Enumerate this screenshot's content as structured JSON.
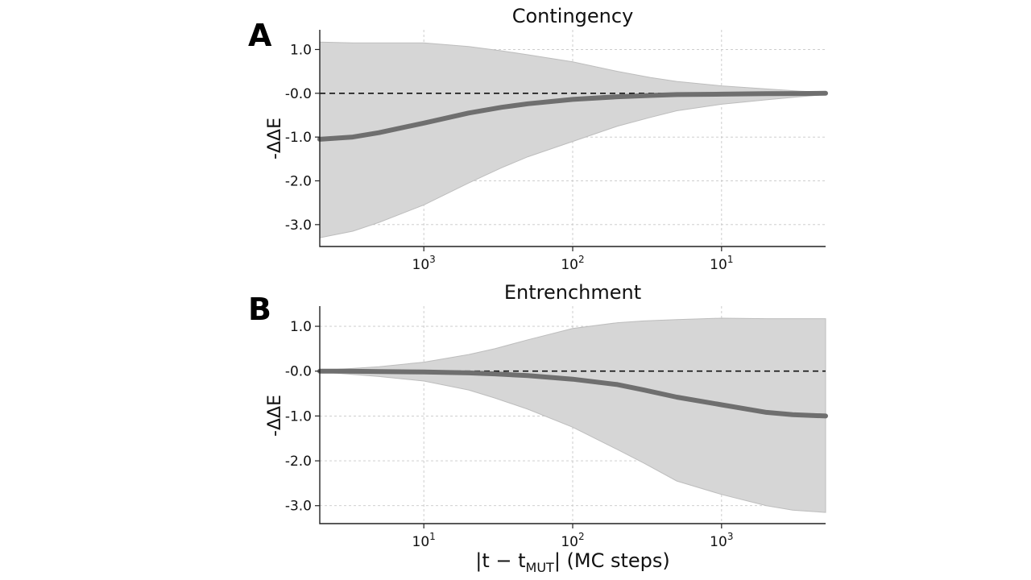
{
  "chart_data": [
    {
      "type": "area",
      "panel_label": "A",
      "title": "Contingency",
      "ylabel": "-ΔΔE",
      "xscale": "log",
      "xaxis_direction": "reversed",
      "xlim": [
        5000,
        2
      ],
      "ylim": [
        -3.5,
        1.45
      ],
      "xticks": [
        1000,
        100,
        10
      ],
      "xtick_labels": [
        {
          "base": "10",
          "exp": "3"
        },
        {
          "base": "10",
          "exp": "2"
        },
        {
          "base": "10",
          "exp": "1"
        }
      ],
      "yticks": [
        1.0,
        0.0,
        -1.0,
        -2.0,
        -3.0
      ],
      "ytick_labels": [
        "1.0",
        "-0.0",
        "-1.0",
        "-2.0",
        "-3.0"
      ],
      "grid": true,
      "reference_line": {
        "y": 0.0,
        "style": "dashed"
      },
      "series": [
        {
          "name": "mean",
          "x": [
            5000,
            3000,
            2000,
            1000,
            500,
            300,
            200,
            100,
            50,
            30,
            20,
            10,
            5,
            3,
            2
          ],
          "y": [
            -1.05,
            -1.0,
            -0.9,
            -0.68,
            -0.45,
            -0.32,
            -0.24,
            -0.14,
            -0.08,
            -0.05,
            -0.03,
            -0.02,
            -0.01,
            -0.005,
            0.0
          ]
        },
        {
          "name": "upper",
          "x": [
            5000,
            3000,
            2000,
            1000,
            500,
            300,
            200,
            100,
            50,
            30,
            20,
            10,
            5,
            3,
            2
          ],
          "y": [
            1.17,
            1.15,
            1.15,
            1.15,
            1.07,
            0.97,
            0.88,
            0.72,
            0.5,
            0.36,
            0.27,
            0.17,
            0.1,
            0.05,
            0.02
          ]
        },
        {
          "name": "lower",
          "x": [
            5000,
            3000,
            2000,
            1000,
            500,
            300,
            200,
            100,
            50,
            30,
            20,
            10,
            5,
            3,
            2
          ],
          "y": [
            -3.3,
            -3.15,
            -2.95,
            -2.55,
            -2.05,
            -1.7,
            -1.45,
            -1.1,
            -0.75,
            -0.55,
            -0.4,
            -0.25,
            -0.15,
            -0.08,
            -0.03
          ]
        }
      ]
    },
    {
      "type": "area",
      "panel_label": "B",
      "title": "Entrenchment",
      "ylabel": "-ΔΔE",
      "xlabel": {
        "prefix": "|t − t",
        "sub": "MUT",
        "suffix": "| (MC steps)"
      },
      "xscale": "log",
      "xaxis_direction": "normal",
      "xlim": [
        2,
        5000
      ],
      "ylim": [
        -3.4,
        1.45
      ],
      "xticks": [
        10,
        100,
        1000
      ],
      "xtick_labels": [
        {
          "base": "10",
          "exp": "1"
        },
        {
          "base": "10",
          "exp": "2"
        },
        {
          "base": "10",
          "exp": "3"
        }
      ],
      "yticks": [
        1.0,
        0.0,
        -1.0,
        -2.0,
        -3.0
      ],
      "ytick_labels": [
        "1.0",
        "-0.0",
        "-1.0",
        "-2.0",
        "-3.0"
      ],
      "grid": true,
      "reference_line": {
        "y": 0.0,
        "style": "dashed"
      },
      "series": [
        {
          "name": "mean",
          "x": [
            2,
            3,
            5,
            10,
            20,
            30,
            50,
            100,
            200,
            300,
            500,
            1000,
            2000,
            3000,
            5000
          ],
          "y": [
            0.0,
            0.0,
            -0.01,
            -0.02,
            -0.04,
            -0.06,
            -0.1,
            -0.18,
            -0.3,
            -0.42,
            -0.58,
            -0.75,
            -0.92,
            -0.97,
            -1.0
          ]
        },
        {
          "name": "upper",
          "x": [
            2,
            3,
            5,
            10,
            20,
            30,
            50,
            100,
            200,
            300,
            500,
            1000,
            2000,
            3000,
            5000
          ],
          "y": [
            0.02,
            0.05,
            0.1,
            0.2,
            0.37,
            0.5,
            0.7,
            0.95,
            1.08,
            1.12,
            1.15,
            1.18,
            1.17,
            1.17,
            1.17
          ]
        },
        {
          "name": "lower",
          "x": [
            2,
            3,
            5,
            10,
            20,
            30,
            50,
            100,
            200,
            300,
            500,
            1000,
            2000,
            3000,
            5000
          ],
          "y": [
            -0.02,
            -0.06,
            -0.12,
            -0.22,
            -0.42,
            -0.6,
            -0.85,
            -1.25,
            -1.75,
            -2.05,
            -2.45,
            -2.75,
            -3.0,
            -3.1,
            -3.15
          ]
        }
      ]
    }
  ]
}
